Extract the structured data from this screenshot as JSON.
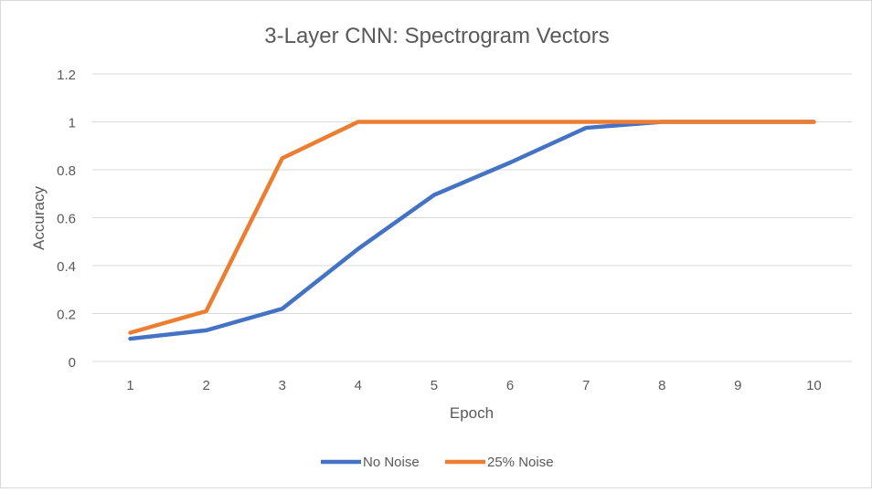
{
  "chart_data": {
    "type": "line",
    "title": "3-Layer CNN: Spectrogram Vectors",
    "xlabel": "Epoch",
    "ylabel": "Accuracy",
    "categories": [
      "1",
      "2",
      "3",
      "4",
      "5",
      "6",
      "7",
      "8",
      "9",
      "10"
    ],
    "yticks": [
      "0",
      "0.2",
      "0.4",
      "0.6",
      "0.8",
      "1",
      "1.2"
    ],
    "ylim": [
      0,
      1.2
    ],
    "grid": true,
    "legend_position": "bottom",
    "series": [
      {
        "name": "No Noise",
        "color": "#4472C4",
        "values": [
          0.095,
          0.13,
          0.22,
          0.47,
          0.695,
          0.83,
          0.975,
          1.0,
          1.0,
          1.0
        ]
      },
      {
        "name": "25% Noise",
        "color": "#ED7D31",
        "values": [
          0.12,
          0.21,
          0.848,
          1.0,
          1.0,
          1.0,
          1.0,
          1.0,
          1.0,
          1.0
        ]
      }
    ]
  }
}
